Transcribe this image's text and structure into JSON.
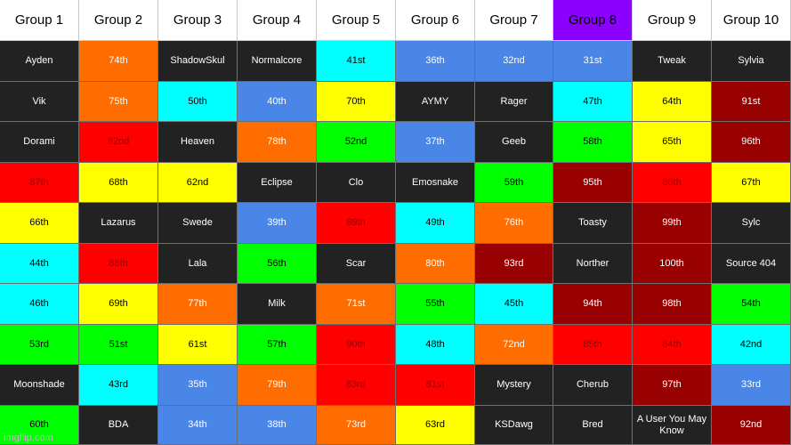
{
  "headers": [
    {
      "label": "Group 1",
      "bg": "#ffffff"
    },
    {
      "label": "Group 2",
      "bg": "#ffffff"
    },
    {
      "label": "Group 3",
      "bg": "#ffffff"
    },
    {
      "label": "Group 4",
      "bg": "#ffffff"
    },
    {
      "label": "Group 5",
      "bg": "#ffffff"
    },
    {
      "label": "Group 6",
      "bg": "#ffffff"
    },
    {
      "label": "Group 7",
      "bg": "#ffffff"
    },
    {
      "label": "Group 8",
      "bg": "#8b00ff"
    },
    {
      "label": "Group 9",
      "bg": "#ffffff"
    },
    {
      "label": "Group 10",
      "bg": "#ffffff"
    }
  ],
  "palette": {
    "D": "#222222",
    "O": "#ff6c00",
    "C": "#00ffff",
    "B": "#4a86e8",
    "Y": "#ffff00",
    "M": "#990000",
    "G": "#00ff00",
    "R": "#ff0000"
  },
  "rows": [
    [
      [
        "Ayden",
        "D"
      ],
      [
        "74th",
        "O"
      ],
      [
        "ShadowSkul",
        "D"
      ],
      [
        "Normalcore",
        "D"
      ],
      [
        "41st",
        "C"
      ],
      [
        "36th",
        "B"
      ],
      [
        "32nd",
        "B"
      ],
      [
        "31st",
        "B"
      ],
      [
        "Tweak",
        "D"
      ],
      [
        "Sylvia",
        "D"
      ]
    ],
    [
      [
        "Vik",
        "D"
      ],
      [
        "75th",
        "O"
      ],
      [
        "50th",
        "C"
      ],
      [
        "40th",
        "B"
      ],
      [
        "70th",
        "Y"
      ],
      [
        "AYMY",
        "D"
      ],
      [
        "Rager",
        "D"
      ],
      [
        "47th",
        "C"
      ],
      [
        "64th",
        "Y"
      ],
      [
        "91st",
        "M"
      ]
    ],
    [
      [
        "Dorami",
        "D"
      ],
      [
        "82nd",
        "R"
      ],
      [
        "Heaven",
        "D"
      ],
      [
        "78th",
        "O"
      ],
      [
        "52nd",
        "G"
      ],
      [
        "37th",
        "B"
      ],
      [
        "Geeb",
        "D"
      ],
      [
        "58th",
        "G"
      ],
      [
        "65th",
        "Y"
      ],
      [
        "96th",
        "M"
      ]
    ],
    [
      [
        "87th",
        "R"
      ],
      [
        "68th",
        "Y"
      ],
      [
        "62nd",
        "Y"
      ],
      [
        "Eclipse",
        "D"
      ],
      [
        "Clo",
        "D"
      ],
      [
        "Emosnake",
        "D"
      ],
      [
        "59th",
        "G"
      ],
      [
        "95th",
        "M"
      ],
      [
        "86th",
        "R"
      ],
      [
        "67th",
        "Y"
      ]
    ],
    [
      [
        "66th",
        "Y"
      ],
      [
        "Lazarus",
        "D"
      ],
      [
        "Swede",
        "D"
      ],
      [
        "39th",
        "B"
      ],
      [
        "89th",
        "R"
      ],
      [
        "49th",
        "C"
      ],
      [
        "76th",
        "O"
      ],
      [
        "Toasty",
        "D"
      ],
      [
        "99th",
        "M"
      ],
      [
        "Sylc",
        "D"
      ]
    ],
    [
      [
        "44th",
        "C"
      ],
      [
        "88th",
        "R"
      ],
      [
        "Lala",
        "D"
      ],
      [
        "56th",
        "G"
      ],
      [
        "Scar",
        "D"
      ],
      [
        "80th",
        "O"
      ],
      [
        "93rd",
        "M"
      ],
      [
        "Norther",
        "D"
      ],
      [
        "100th",
        "M"
      ],
      [
        "Source 404",
        "D"
      ]
    ],
    [
      [
        "46th",
        "C"
      ],
      [
        "69th",
        "Y"
      ],
      [
        "77th",
        "O"
      ],
      [
        "Milk",
        "D"
      ],
      [
        "71st",
        "O"
      ],
      [
        "55th",
        "G"
      ],
      [
        "45th",
        "C"
      ],
      [
        "94th",
        "M"
      ],
      [
        "98th",
        "M"
      ],
      [
        "54th",
        "G"
      ]
    ],
    [
      [
        "53rd",
        "G"
      ],
      [
        "51st",
        "G"
      ],
      [
        "61st",
        "Y"
      ],
      [
        "57th",
        "G"
      ],
      [
        "90th",
        "R"
      ],
      [
        "48th",
        "C"
      ],
      [
        "72nd",
        "O"
      ],
      [
        "85th",
        "R"
      ],
      [
        "84th",
        "R"
      ],
      [
        "42nd",
        "C"
      ]
    ],
    [
      [
        "Moonshade",
        "D"
      ],
      [
        "43rd",
        "C"
      ],
      [
        "35th",
        "B"
      ],
      [
        "79th",
        "O"
      ],
      [
        "83rd",
        "R"
      ],
      [
        "81st",
        "R"
      ],
      [
        "Mystery",
        "D"
      ],
      [
        "Cherub",
        "D"
      ],
      [
        "97th",
        "M"
      ],
      [
        "33rd",
        "B"
      ]
    ],
    [
      [
        "60th",
        "G"
      ],
      [
        "BDA",
        "D"
      ],
      [
        "34th",
        "B"
      ],
      [
        "38th",
        "B"
      ],
      [
        "73rd",
        "O"
      ],
      [
        "63rd",
        "Y"
      ],
      [
        "KSDawg",
        "D"
      ],
      [
        "Bred",
        "D"
      ],
      [
        "A User You May Know",
        "D"
      ],
      [
        "92nd",
        "M"
      ]
    ]
  ],
  "watermark": "imgflip.com"
}
